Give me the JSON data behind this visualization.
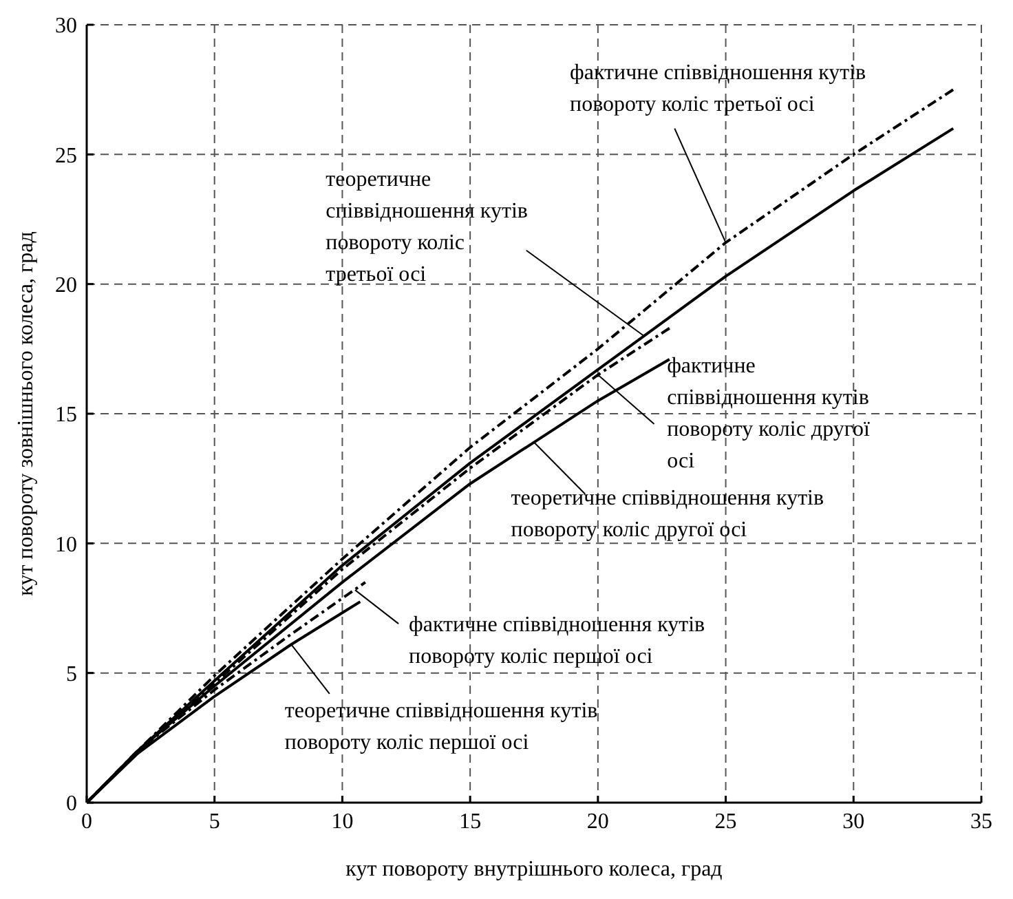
{
  "chart_data": {
    "type": "line",
    "xlabel": "кут повороту внутрішнього колеса, град",
    "ylabel": "кут повороту зовнішнього колеса, град",
    "xlim": [
      0,
      35
    ],
    "xticks": [
      0,
      5,
      10,
      15,
      20,
      25,
      30,
      35
    ],
    "ylim": [
      0,
      30
    ],
    "yticks": [
      0,
      5,
      10,
      15,
      20,
      25,
      30
    ],
    "grid": true,
    "marker": "none",
    "series": [
      {
        "color": "#000000",
        "line_style": "solid",
        "x": [
          0,
          2,
          5,
          8,
          10.7
        ],
        "values": [
          0,
          1.9,
          4.1,
          6.1,
          7.75
        ]
      },
      {
        "color": "#000000",
        "line_style": "dashdot",
        "x": [
          0,
          2,
          5,
          8,
          10.9
        ],
        "values": [
          0,
          2,
          4.35,
          6.5,
          8.5
        ]
      },
      {
        "color": "#000000",
        "line_style": "solid",
        "x": [
          0,
          2,
          5,
          10,
          15,
          20,
          22.8
        ],
        "values": [
          0,
          2,
          4.5,
          8.5,
          12.3,
          15.5,
          17.1
        ]
      },
      {
        "color": "#000000",
        "line_style": "dashdot",
        "x": [
          0,
          2,
          5,
          10,
          15,
          20,
          22.8
        ],
        "values": [
          0,
          2,
          4.6,
          9,
          12.9,
          16.5,
          18.3
        ]
      },
      {
        "color": "#000000",
        "line_style": "solid",
        "x": [
          0,
          2,
          5,
          10,
          15,
          20,
          25,
          30,
          33.9
        ],
        "values": [
          0,
          2,
          4.7,
          9.15,
          13.1,
          16.7,
          20.3,
          23.6,
          26
        ]
      },
      {
        "color": "#000000",
        "line_style": "dashdot",
        "x": [
          0,
          2,
          5,
          10,
          15,
          20,
          25,
          30,
          33.9
        ],
        "values": [
          0,
          2,
          4.9,
          9.4,
          13.7,
          17.5,
          21.6,
          25,
          27.5
        ]
      }
    ],
    "annotations": [
      {
        "text": "фактичне співвідношення кутів\nповороту коліс третьої осі",
        "x": 25,
        "y": 21.6
      },
      {
        "text": "теоретичне\nспіввідношення кутів\nповороту коліс\nтретьої осі",
        "x": 21.8,
        "y": 18
      },
      {
        "text": "фактичне\nспіввідношення кутів\nповороту коліс другої\nосі",
        "x": 20,
        "y": 16.5
      },
      {
        "text": "теоретичне співвідношення кутів\nповороту коліс другої осі",
        "x": 17.5,
        "y": 13.9
      },
      {
        "text": "фактичне співвідношення кутів\nповороту коліс першої осі",
        "x": 10.5,
        "y": 8.2
      },
      {
        "text": "теоретичне співвідношення кутів\nповороту коліс першої осі",
        "x": 8,
        "y": 6.1
      }
    ]
  }
}
